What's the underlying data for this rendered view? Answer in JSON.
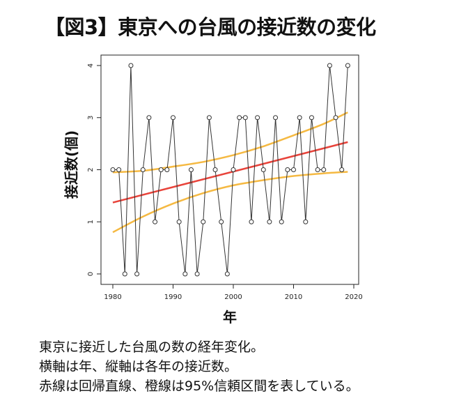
{
  "page": {
    "title": "【図3】東京への台風の接近数の変化",
    "caption_lines": [
      "東京に接近した台風の数の経年変化。",
      "横軸は年、縦軸は各年の接近数。",
      "赤線は回帰直線、橙線は95%信頼区間を表している。"
    ]
  },
  "chart_data": {
    "type": "line",
    "title": "",
    "xlabel": "年",
    "ylabel": "接近数(個)",
    "xlim": [
      1980,
      2020
    ],
    "ylim": [
      0,
      4
    ],
    "x_ticks": [
      1980,
      1990,
      2000,
      2010,
      2020
    ],
    "y_ticks": [
      0,
      1,
      2,
      3,
      4
    ],
    "grid": false,
    "legend": "none",
    "series": [
      {
        "role": "observed",
        "color": "#333333",
        "marker": "open-circle",
        "x": [
          1980,
          1981,
          1982,
          1983,
          1984,
          1985,
          1986,
          1987,
          1988,
          1989,
          1990,
          1991,
          1992,
          1993,
          1994,
          1995,
          1996,
          1997,
          1998,
          1999,
          2000,
          2001,
          2002,
          2003,
          2004,
          2005,
          2006,
          2007,
          2008,
          2009,
          2010,
          2011,
          2012,
          2013,
          2014,
          2015,
          2016,
          2017,
          2018,
          2019
        ],
        "y": [
          2,
          2,
          0,
          4,
          0,
          2,
          3,
          1,
          2,
          2,
          3,
          1,
          0,
          2,
          0,
          1,
          3,
          2,
          1,
          0,
          2,
          3,
          3,
          1,
          3,
          2,
          1,
          3,
          1,
          2,
          2,
          3,
          1,
          3,
          2,
          2,
          4,
          3,
          2,
          4
        ]
      },
      {
        "role": "regression-line",
        "color": "#e8433a",
        "x": [
          1980,
          2019
        ],
        "y": [
          1.37,
          2.53
        ]
      },
      {
        "role": "ci-upper",
        "color": "#f5b942",
        "x": [
          1980,
          1985,
          1990,
          1995,
          2000,
          2005,
          2010,
          2015,
          2019
        ],
        "y": [
          1.95,
          1.98,
          2.06,
          2.15,
          2.28,
          2.45,
          2.66,
          2.88,
          3.1
        ]
      },
      {
        "role": "ci-lower",
        "color": "#f5b942",
        "x": [
          1980,
          1985,
          1990,
          1995,
          2000,
          2005,
          2010,
          2015,
          2019
        ],
        "y": [
          0.8,
          1.1,
          1.35,
          1.55,
          1.7,
          1.8,
          1.88,
          1.93,
          1.96
        ]
      }
    ]
  }
}
